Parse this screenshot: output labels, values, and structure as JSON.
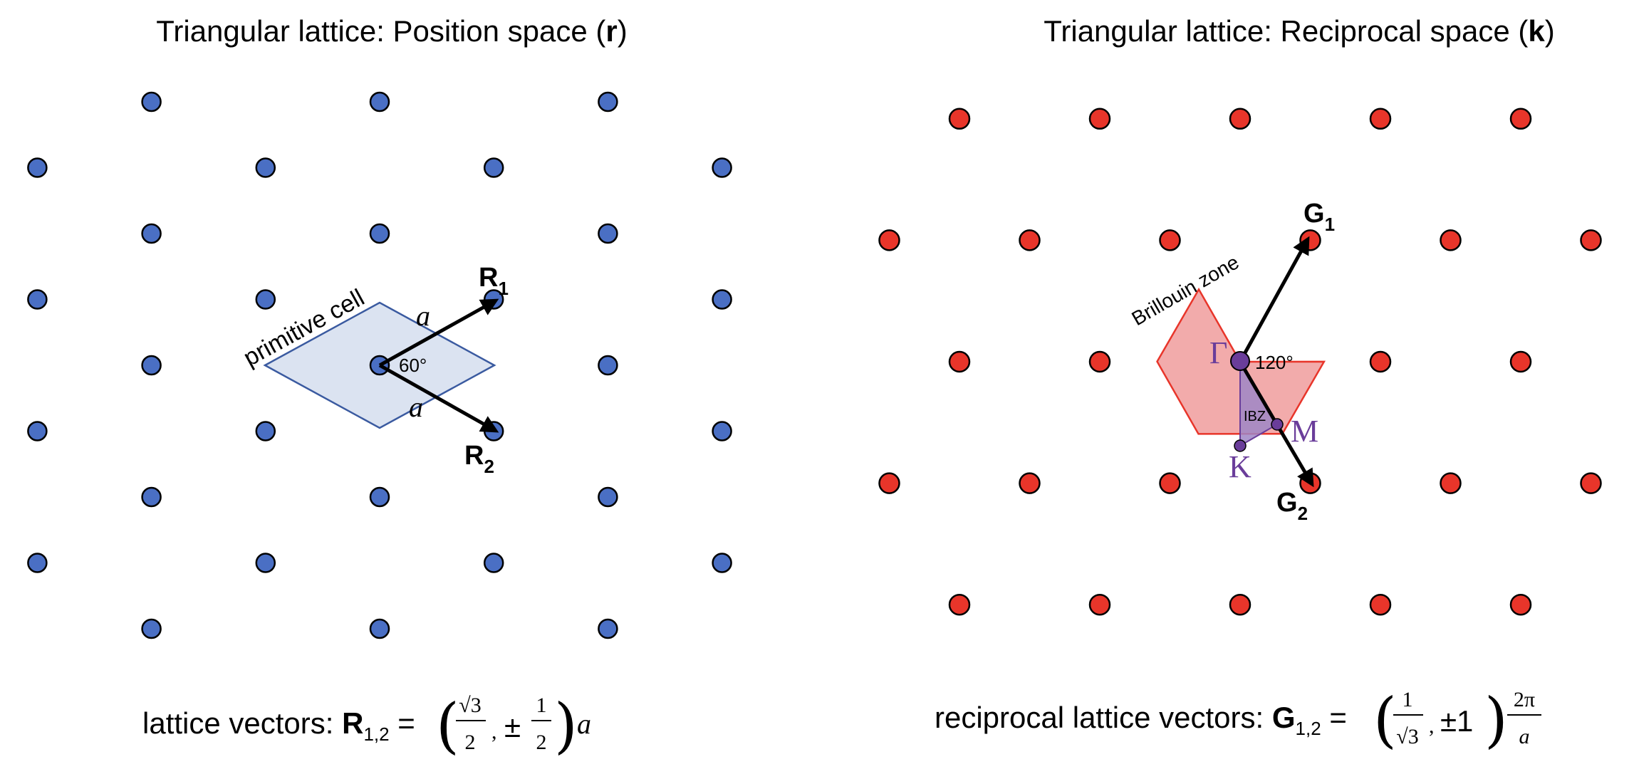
{
  "colors": {
    "real_dot": "#4a6fc4",
    "recip_dot": "#e8352a",
    "cell_fill": "#dbe3f1",
    "cell_stroke": "#3a5aa0",
    "bz_fill": "#f2abab",
    "bz_stroke": "#e8352a",
    "ibz_fill": "#9f86c6",
    "symbol": "#6a3d9a"
  },
  "left": {
    "title_prefix": "Triangular lattice: Position space (",
    "title_bold": "r",
    "title_suffix": ")",
    "vector1_main": "R",
    "vector1_sub": "1",
    "vector2_main": "R",
    "vector2_sub": "2",
    "length_label": "a",
    "angle_label": "60°",
    "cell_label": "primitive cell",
    "formula_prefix": "lattice vectors: ",
    "formula_bold": "R",
    "formula_sub": "1,2",
    "formula_eq": " = ",
    "formula_sqrt_num": "√3",
    "formula_den1": "2",
    "formula_pm": "±",
    "formula_num2": "1",
    "formula_den2": "2",
    "formula_a": "a"
  },
  "right": {
    "title_prefix": "Triangular lattice: Reciprocal space (",
    "title_bold": "k",
    "title_suffix": ")",
    "vector1_main": "G",
    "vector1_sub": "1",
    "vector2_main": "G",
    "vector2_sub": "2",
    "angle_label": "120°",
    "bz_label": "Brillouin zone",
    "ibz_label": "IBZ",
    "gamma_label": "Γ",
    "m_label": "M",
    "k_label": "K",
    "formula_prefix": "reciprocal lattice vectors: ",
    "formula_bold": "G",
    "formula_sub": "1,2",
    "formula_eq": " = ",
    "formula_num1": "1",
    "formula_den1": "√3",
    "formula_pm1": "±1",
    "formula_num2": "2π",
    "formula_den2": "a"
  }
}
